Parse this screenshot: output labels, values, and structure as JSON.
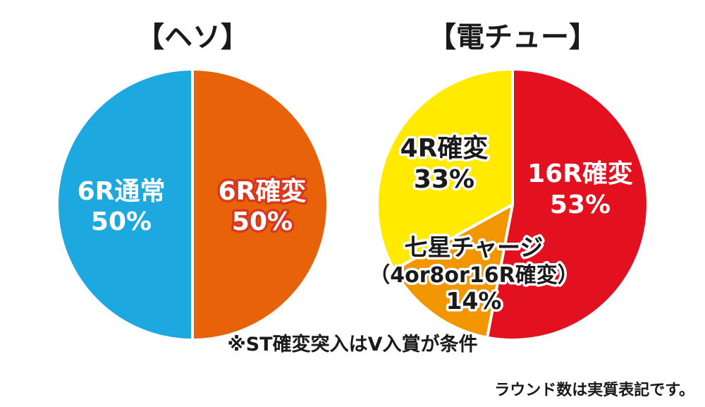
{
  "chart_data": [
    {
      "type": "pie",
      "title": "【ヘソ】",
      "slices": [
        {
          "label": "6R確変",
          "value": 50,
          "value_text": "50%",
          "color": "#e8620a"
        },
        {
          "label": "6R通常",
          "value": 50,
          "value_text": "50%",
          "color": "#1ea8e0"
        }
      ]
    },
    {
      "type": "pie",
      "title": "【電チュー】",
      "slices": [
        {
          "label": "16R確変",
          "value": 53,
          "value_text": "53%",
          "color": "#e3101f"
        },
        {
          "label": "七星チャージ",
          "sublabel": "（4or8or16R確変）",
          "value": 14,
          "value_text": "14%",
          "color": "#f29600"
        },
        {
          "label": "4R確変",
          "value": 33,
          "value_text": "33%",
          "color": "#ffea00"
        }
      ]
    }
  ],
  "note": "※ST確変突入はV入賞が条件",
  "footnote": "ラウンド数は実質表記です。"
}
